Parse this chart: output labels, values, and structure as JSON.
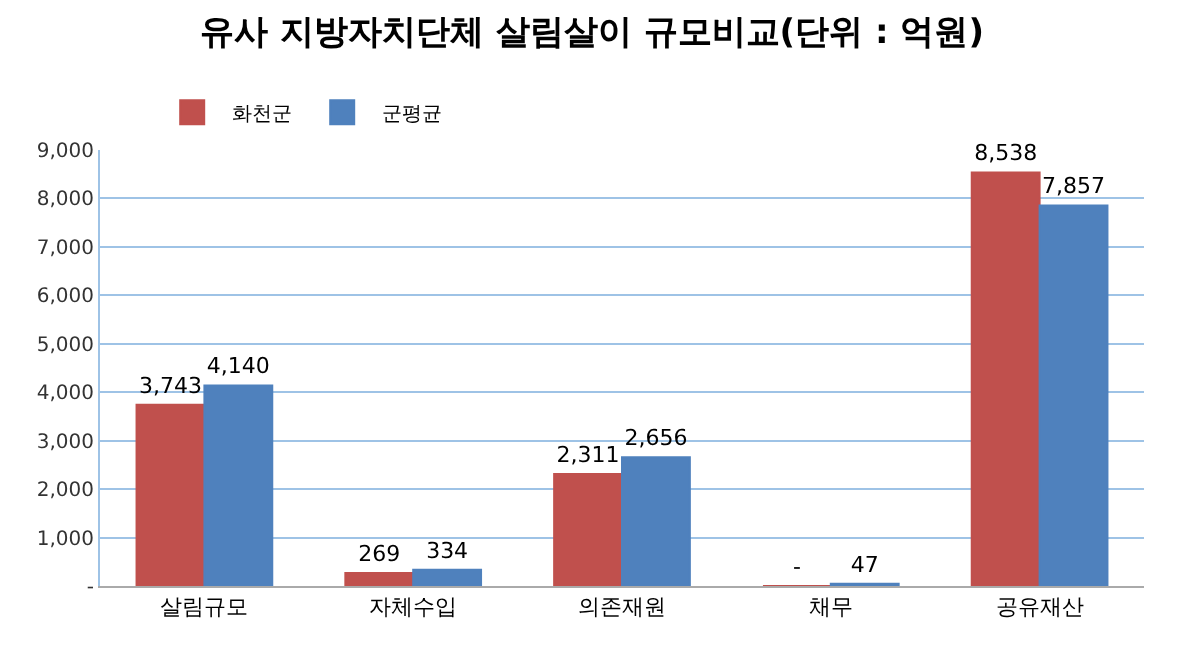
{
  "chart_data": {
    "type": "bar",
    "title": "유사 지방자치단체 살림살이 규모비교(단위 : 억원)",
    "categories": [
      "살림규모",
      "자체수입",
      "의존재원",
      "채무",
      "공유재산"
    ],
    "series": [
      {
        "name": "화천군",
        "color": "#c0504d",
        "values": [
          3743,
          269,
          2311,
          0,
          8538
        ],
        "value_labels": [
          "3,743",
          "269",
          "2,311",
          "-",
          "8,538"
        ]
      },
      {
        "name": "군평균",
        "color": "#4f81bd",
        "values": [
          4140,
          334,
          2656,
          47,
          7857
        ],
        "value_labels": [
          "4,140",
          "334",
          "2,656",
          "47",
          "7,857"
        ]
      }
    ],
    "ylim": [
      0,
      9000
    ],
    "yticks": [
      {
        "value": 0,
        "label": "-"
      },
      {
        "value": 1000,
        "label": "1,000"
      },
      {
        "value": 2000,
        "label": "2,000"
      },
      {
        "value": 3000,
        "label": "3,000"
      },
      {
        "value": 4000,
        "label": "4,000"
      },
      {
        "value": 5000,
        "label": "5,000"
      },
      {
        "value": 6000,
        "label": "6,000"
      },
      {
        "value": 7000,
        "label": "7,000"
      },
      {
        "value": 8000,
        "label": "8,000"
      },
      {
        "value": 9000,
        "label": "9,000"
      }
    ],
    "grid": "y",
    "legend": "top left"
  }
}
